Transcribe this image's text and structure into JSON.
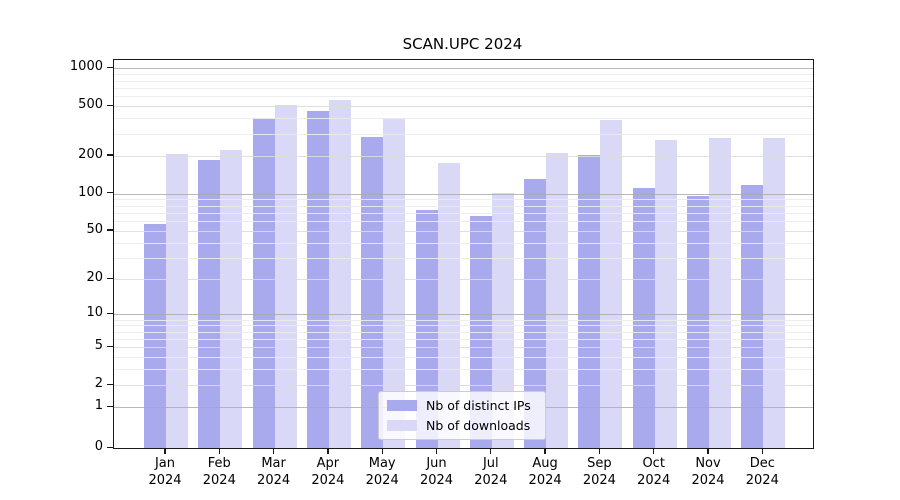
{
  "title": "SCAN.UPC 2024",
  "chart_data": {
    "type": "bar",
    "categories": [
      "Jan",
      "Feb",
      "Mar",
      "Apr",
      "May",
      "Jun",
      "Jul",
      "Aug",
      "Sep",
      "Oct",
      "Nov",
      "Dec"
    ],
    "year_label": "2024",
    "series": [
      {
        "name": "Nb of distinct IPs",
        "color": "#a9a9ee",
        "values": [
          57,
          185,
          400,
          460,
          285,
          73,
          66,
          130,
          205,
          110,
          96,
          118
        ]
      },
      {
        "name": "Nb of downloads",
        "color": "#d9d9f7",
        "values": [
          207,
          222,
          515,
          560,
          400,
          176,
          101,
          211,
          390,
          270,
          277,
          277
        ]
      }
    ],
    "yscale": "log1p",
    "ylim": [
      0,
      1100
    ],
    "yticks": [
      0,
      1,
      2,
      5,
      10,
      20,
      50,
      100,
      200,
      500,
      1000
    ],
    "y_minor_ticks": [
      3,
      4,
      6,
      7,
      8,
      9,
      30,
      40,
      60,
      70,
      80,
      90,
      300,
      400,
      600,
      700,
      800,
      900
    ],
    "grid": true,
    "legend_position": "bottom-center",
    "grid_colors": {
      "major": "#a8a8a8",
      "mid": "#dcdcdc",
      "minor": "#ebebeb"
    }
  }
}
